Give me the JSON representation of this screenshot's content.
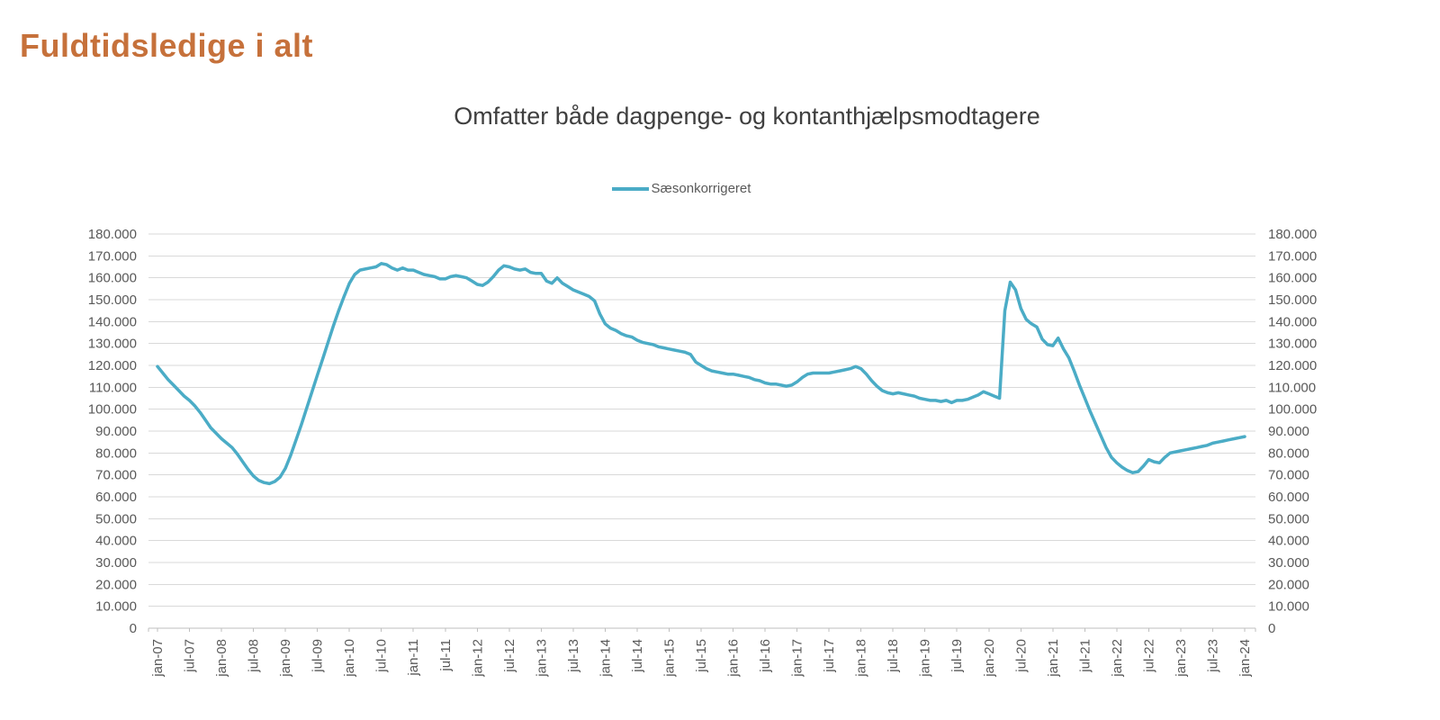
{
  "page": {
    "title": "Fuldtidsledige i alt"
  },
  "chart": {
    "subtitle": "Omfatter både dagpenge- og kontanthjælpsmodtagere",
    "legend": {
      "label": "Sæsonkorrigeret"
    }
  },
  "chart_data": {
    "type": "line",
    "title": "Omfatter både dagpenge- og kontanthjælpsmodtagere",
    "legend_entries": [
      "Sæsonkorrigeret"
    ],
    "legend_position": "top-center",
    "grid": "horizontal",
    "x_start": "jan-07",
    "x_end": "jan-24",
    "frequency": "monthly",
    "ylim": [
      0,
      180000
    ],
    "y_tick_step": 10000,
    "y_axis_sides": [
      "left",
      "right"
    ],
    "y_tick_labels": [
      "0",
      "10.000",
      "20.000",
      "30.000",
      "40.000",
      "50.000",
      "60.000",
      "70.000",
      "80.000",
      "90.000",
      "100.000",
      "110.000",
      "120.000",
      "130.000",
      "140.000",
      "150.000",
      "160.000",
      "170.000",
      "180.000"
    ],
    "x_tick_labels": [
      "jan-07",
      "jul-07",
      "jan-08",
      "jul-08",
      "jan-09",
      "jul-09",
      "jan-10",
      "jul-10",
      "jan-11",
      "jul-11",
      "jan-12",
      "jul-12",
      "jan-13",
      "jul-13",
      "jan-14",
      "jul-14",
      "jan-15",
      "jul-15",
      "jan-16",
      "jul-16",
      "jan-17",
      "jul-17",
      "jan-18",
      "jul-18",
      "jan-19",
      "jul-19",
      "jan-20",
      "jul-20",
      "jan-21",
      "jul-21",
      "jan-22",
      "jul-22",
      "jan-23",
      "jul-23",
      "jan-24"
    ],
    "x_ticks_every_n_months": 6,
    "series": [
      {
        "name": "Sæsonkorrigeret",
        "color": "#4BACC6",
        "values": [
          119500,
          116500,
          113500,
          111000,
          108500,
          106000,
          104000,
          101500,
          98500,
          95000,
          91500,
          89000,
          86500,
          84500,
          82500,
          79500,
          76000,
          72500,
          69500,
          67500,
          66500,
          66000,
          67000,
          69000,
          73000,
          79000,
          86000,
          93000,
          100500,
          108000,
          115500,
          123000,
          130500,
          138000,
          145000,
          151500,
          157500,
          161500,
          163500,
          164000,
          164500,
          165000,
          166500,
          166000,
          164500,
          163500,
          164500,
          163500,
          163500,
          162500,
          161500,
          161000,
          160500,
          159500,
          159500,
          160500,
          161000,
          160500,
          160000,
          158500,
          157000,
          156500,
          158000,
          160500,
          163500,
          165500,
          165000,
          164000,
          163500,
          164000,
          162500,
          162000,
          162000,
          158500,
          157500,
          160000,
          157500,
          156000,
          154500,
          153500,
          152500,
          151500,
          149500,
          143500,
          139000,
          137000,
          136000,
          134500,
          133500,
          133000,
          131500,
          130500,
          130000,
          129500,
          128500,
          128000,
          127500,
          127000,
          126500,
          126000,
          125000,
          121500,
          120000,
          118500,
          117500,
          117000,
          116500,
          116000,
          116000,
          115500,
          115000,
          114500,
          113500,
          113000,
          112000,
          111500,
          111500,
          111000,
          110500,
          111000,
          112500,
          114500,
          116000,
          116500,
          116500,
          116500,
          116500,
          117000,
          117500,
          118000,
          118500,
          119500,
          118500,
          116000,
          113000,
          110500,
          108500,
          107500,
          107000,
          107500,
          107000,
          106500,
          106000,
          105000,
          104500,
          104000,
          104000,
          103500,
          104000,
          103000,
          104000,
          104000,
          104500,
          105500,
          106500,
          108000,
          107000,
          106000,
          105000,
          145000,
          158000,
          154500,
          146000,
          141000,
          139000,
          137500,
          132000,
          129500,
          129000,
          132500,
          127500,
          123500,
          117500,
          111000,
          105000,
          99000,
          93500,
          88000,
          82500,
          78000,
          75500,
          73500,
          72000,
          71000,
          71500,
          74000,
          77000,
          76000,
          75500,
          78000,
          80000,
          80500,
          81000,
          81500,
          82000,
          82500,
          83000,
          83500,
          84500,
          85000,
          85500,
          86000,
          86500,
          87000,
          87500
        ]
      }
    ],
    "colors": {
      "line": "#4BACC6",
      "grid": "#D9D9D9",
      "axis": "#BFBFBF",
      "tick_text": "#595959",
      "title": "#C6713B",
      "subtitle": "#3F3F3F"
    }
  }
}
